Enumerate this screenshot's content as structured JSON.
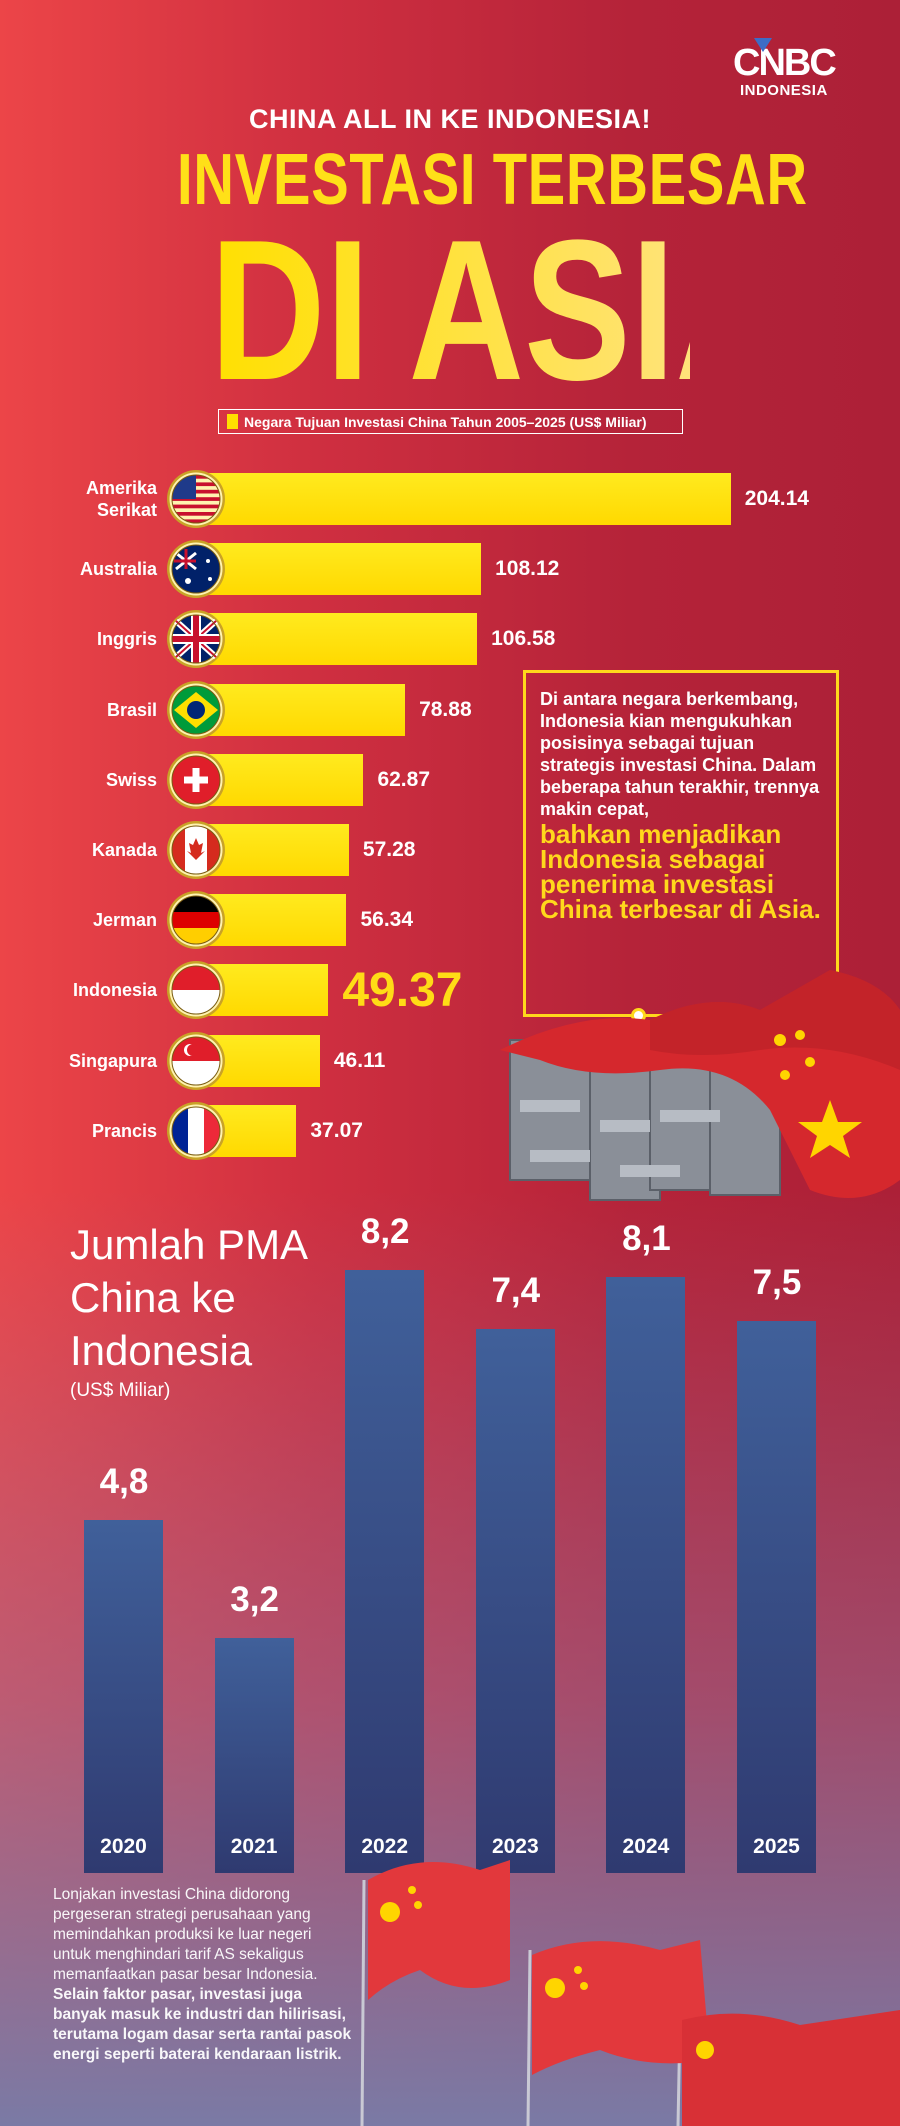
{
  "brand": {
    "logo_top": "CNBC",
    "logo_bottom": "INDONESIA"
  },
  "header": {
    "kicker": "CHINA ALL IN KE INDONESIA!",
    "title_line1": "INVESTASI TERBESAR",
    "title_line2": "DI ASIA"
  },
  "colors": {
    "bar_yellow": "#ffe000",
    "highlight": "#ffd81c",
    "bar_navy": "#36497f",
    "background_red": "#c22a3d"
  },
  "chart_data": [
    {
      "type": "bar",
      "orientation": "horizontal",
      "title": "Negara Tujuan Investasi China Tahun 2005–2025 (US$ Miliar)",
      "legend_placement": "top",
      "grid": false,
      "categories": [
        "Amerika Serikat",
        "Australia",
        "Inggris",
        "Brasil",
        "Swiss",
        "Kanada",
        "Jerman",
        "Indonesia",
        "Singapura",
        "Prancis"
      ],
      "flags": [
        "us-flag",
        "australia-flag",
        "uk-flag",
        "brazil-flag",
        "switzerland-flag",
        "canada-flag",
        "germany-flag",
        "indonesia-flag",
        "singapore-flag",
        "france-flag"
      ],
      "labels": [
        "204.14",
        "108.12",
        "106.58",
        "78.88",
        "62.87",
        "57.28",
        "56.34",
        "49.37",
        "46.11",
        "37.07"
      ],
      "values": [
        204.14,
        108.12,
        106.58,
        78.88,
        62.87,
        57.28,
        56.34,
        49.37,
        46.11,
        37.07
      ],
      "highlight": "Indonesia"
    },
    {
      "type": "bar",
      "title": "Jumlah PMA China ke Indonesia",
      "unit": "(US$ Miliar)",
      "grid": false,
      "categories": [
        "2020",
        "2021",
        "2022",
        "2023",
        "2024",
        "2025"
      ],
      "labels": [
        "4,8",
        "3,2",
        "8,2",
        "7,4",
        "8,1",
        "7,5"
      ],
      "values": [
        4.8,
        3.2,
        8.2,
        7.4,
        8.1,
        7.5
      ],
      "ylim": [
        0,
        8.2
      ]
    }
  ],
  "callout": {
    "text": "Di antara negara berkembang, Indonesia kian mengukuhkan posisinya sebagai tujuan strategis investasi China. Dalam beberapa tahun terakhir, trennya makin cepat,",
    "highlight": "bahkan menjadikan Indonesia sebagai penerima investasi China terbesar di Asia."
  },
  "footer": {
    "text": "Lonjakan investasi China didorong pergeseran strategi perusahaan yang memindahkan produksi ke luar negeri untuk menghindari tarif AS sekaligus memanfaatkan pasar besar Indonesia.",
    "bold": "Selain faktor pasar, investasi juga banyak masuk ke industri dan hilirisasi, terutama logam dasar serta rantai pasok energi seperti baterai kendaraan listrik."
  }
}
